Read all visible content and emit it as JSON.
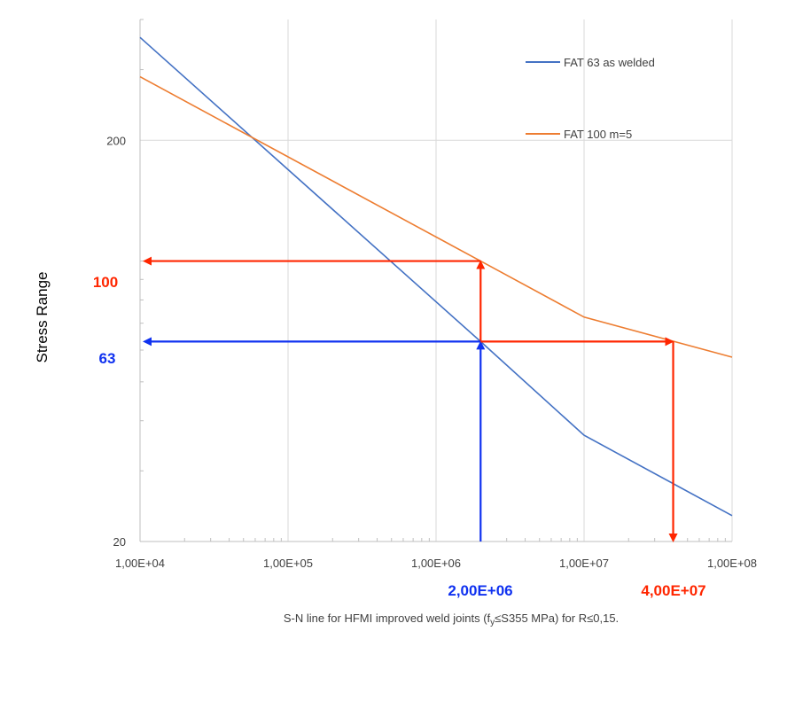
{
  "chart_data": {
    "type": "line",
    "x_scale": "log",
    "y_scale": "log",
    "xlim": [
      10000,
      100000000
    ],
    "ylim": [
      20,
      400
    ],
    "ylabel": "Stress Range",
    "x_ticks": [
      "1,00E+04",
      "1,00E+05",
      "1,00E+06",
      "1,00E+07",
      "1,00E+08"
    ],
    "y_ticks": [
      "20",
      "200"
    ],
    "grid": true,
    "legend_position": "top-right",
    "series": [
      {
        "name": "FAT 63 as welded",
        "color": "#4472C4",
        "x": [
          10000,
          2000000,
          10000000,
          100000000
        ],
        "y": [
          361,
          63,
          36.8,
          23.2
        ]
      },
      {
        "name": "FAT 100 m=5",
        "color": "#ED7D31",
        "x": [
          10000,
          2000000,
          10000000,
          100000000
        ],
        "y": [
          288,
          100,
          72.5,
          57.6
        ]
      }
    ],
    "annotations": {
      "stress_fat100": {
        "label": "100",
        "color": "#FF2600",
        "y": 100,
        "x": 2000000
      },
      "stress_fat63": {
        "label": "63",
        "color": "#1032F0",
        "y": 63,
        "x": 2000000
      },
      "cycles_fat63": {
        "label": "2,00E+06",
        "color": "#1032F0",
        "x": 2000000
      },
      "cycles_fat100": {
        "label": "4,00E+07",
        "color": "#FF2600",
        "x": 40000000,
        "y": 63
      }
    },
    "caption": {
      "pre": "S-N line for HFMI improved weld joints (f",
      "sub": "y",
      "post": "≤S355 MPa) for  R≤0,15."
    }
  }
}
